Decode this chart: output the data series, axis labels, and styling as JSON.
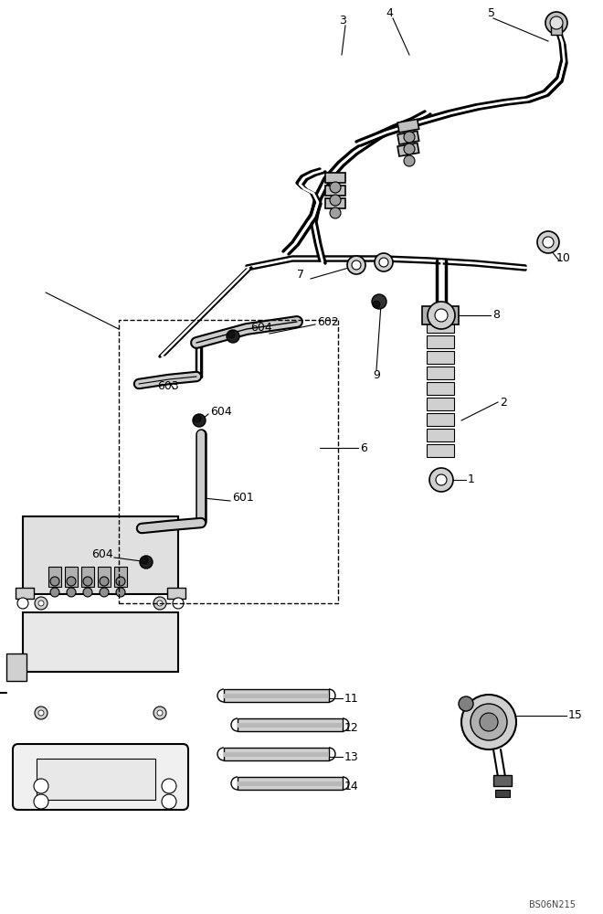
{
  "background_color": "#ffffff",
  "line_color": "#000000",
  "line_width": 1.5,
  "watermark": "BS06N215",
  "label_fontsize": 9
}
